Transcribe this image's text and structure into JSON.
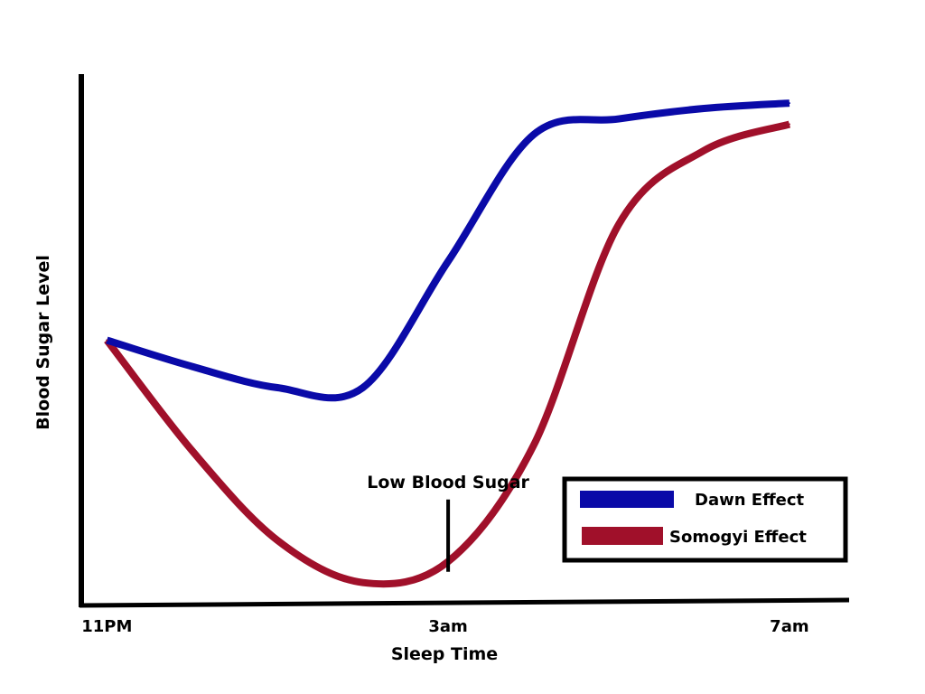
{
  "chart_data": {
    "type": "line",
    "title": "",
    "xlabel": "Sleep Time",
    "ylabel": "Blood Sugar Level",
    "x_ticks": [
      "11PM",
      "3am",
      "7am"
    ],
    "x": [
      23,
      24,
      25,
      26,
      27,
      28,
      29,
      30,
      31
    ],
    "xlim": [
      22.7,
      31.7
    ],
    "ylim": [
      0,
      100
    ],
    "series": [
      {
        "name": "Dawn Effect",
        "color": "#0a0aa8",
        "values": [
          50,
          45,
          41,
          41,
          65,
          89,
          92,
          94,
          95
        ]
      },
      {
        "name": "Somogyi Effect",
        "color": "#a0102a",
        "values": [
          50,
          29,
          12,
          4,
          8,
          30,
          72,
          86,
          91
        ]
      }
    ],
    "annotation": {
      "text": "Low Blood Sugar",
      "x": 27,
      "y": 4
    },
    "legend": {
      "position": "bottom-right"
    }
  }
}
